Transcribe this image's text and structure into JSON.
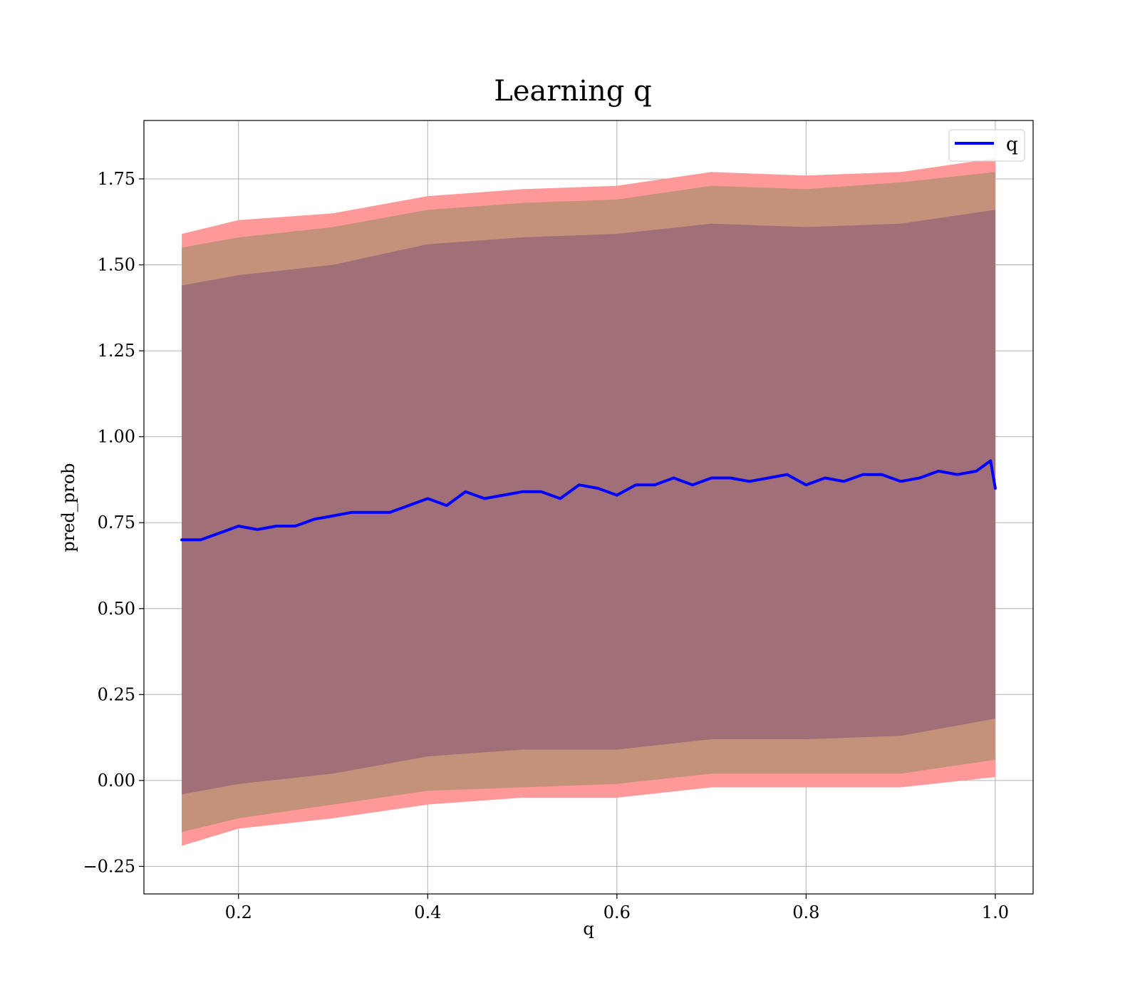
{
  "chart_data": {
    "type": "line",
    "title": "Learning q",
    "xlabel": "q",
    "ylabel": "pred_prob",
    "xlim": [
      0.1,
      1.04
    ],
    "ylim": [
      -0.33,
      1.92
    ],
    "xticks": [
      {
        "value": 0.2,
        "label": "0.2"
      },
      {
        "value": 0.4,
        "label": "0.4"
      },
      {
        "value": 0.6,
        "label": "0.6"
      },
      {
        "value": 0.8,
        "label": "0.8"
      },
      {
        "value": 1.0,
        "label": "1.0"
      }
    ],
    "yticks": [
      {
        "value": -0.25,
        "label": "−0.25"
      },
      {
        "value": 0.0,
        "label": "0.00"
      },
      {
        "value": 0.25,
        "label": "0.25"
      },
      {
        "value": 0.5,
        "label": "0.50"
      },
      {
        "value": 0.75,
        "label": "0.75"
      },
      {
        "value": 1.0,
        "label": "1.00"
      },
      {
        "value": 1.25,
        "label": "1.25"
      },
      {
        "value": 1.5,
        "label": "1.50"
      },
      {
        "value": 1.75,
        "label": "1.75"
      }
    ],
    "grid": true,
    "legend": {
      "position": "top-right",
      "entries": [
        "q"
      ]
    },
    "colors": {
      "line": "#0000ff",
      "band_outer": "#ff9999",
      "band_middle": "#c4917a",
      "band_inner": "#a06f78",
      "grid": "#b0b0b0"
    },
    "series": [
      {
        "name": "q",
        "x": [
          0.14,
          0.16,
          0.18,
          0.2,
          0.22,
          0.24,
          0.26,
          0.28,
          0.3,
          0.32,
          0.34,
          0.36,
          0.38,
          0.4,
          0.42,
          0.44,
          0.46,
          0.48,
          0.5,
          0.52,
          0.54,
          0.56,
          0.58,
          0.6,
          0.62,
          0.64,
          0.66,
          0.68,
          0.7,
          0.72,
          0.74,
          0.76,
          0.78,
          0.8,
          0.82,
          0.84,
          0.86,
          0.88,
          0.9,
          0.92,
          0.94,
          0.96,
          0.98,
          0.995,
          1.0
        ],
        "values": [
          0.7,
          0.7,
          0.72,
          0.74,
          0.73,
          0.74,
          0.74,
          0.76,
          0.77,
          0.78,
          0.78,
          0.78,
          0.8,
          0.82,
          0.8,
          0.84,
          0.82,
          0.83,
          0.84,
          0.84,
          0.82,
          0.86,
          0.85,
          0.83,
          0.86,
          0.86,
          0.88,
          0.86,
          0.88,
          0.88,
          0.87,
          0.88,
          0.89,
          0.86,
          0.88,
          0.87,
          0.89,
          0.89,
          0.87,
          0.88,
          0.9,
          0.89,
          0.9,
          0.93,
          0.85
        ]
      },
      {
        "name": "",
        "role": "band_outer",
        "x": [
          0.14,
          0.2,
          0.3,
          0.4,
          0.5,
          0.6,
          0.7,
          0.8,
          0.9,
          1.0
        ],
        "lower": [
          -0.19,
          -0.14,
          -0.11,
          -0.07,
          -0.05,
          -0.05,
          -0.02,
          -0.02,
          -0.02,
          0.01
        ],
        "upper": [
          1.59,
          1.63,
          1.65,
          1.7,
          1.72,
          1.73,
          1.77,
          1.76,
          1.77,
          1.81
        ]
      },
      {
        "name": "",
        "role": "band_middle",
        "x": [
          0.14,
          0.2,
          0.3,
          0.4,
          0.5,
          0.6,
          0.7,
          0.8,
          0.9,
          1.0
        ],
        "lower": [
          -0.15,
          -0.11,
          -0.07,
          -0.03,
          -0.02,
          -0.01,
          0.02,
          0.02,
          0.02,
          0.06
        ],
        "upper": [
          1.55,
          1.58,
          1.61,
          1.66,
          1.68,
          1.69,
          1.73,
          1.72,
          1.74,
          1.77
        ]
      },
      {
        "name": "",
        "role": "band_inner",
        "x": [
          0.14,
          0.2,
          0.3,
          0.4,
          0.5,
          0.6,
          0.7,
          0.8,
          0.9,
          1.0
        ],
        "lower": [
          -0.04,
          -0.01,
          0.02,
          0.07,
          0.09,
          0.09,
          0.12,
          0.12,
          0.13,
          0.18
        ],
        "upper": [
          1.44,
          1.47,
          1.5,
          1.56,
          1.58,
          1.59,
          1.62,
          1.61,
          1.62,
          1.66
        ]
      }
    ]
  }
}
